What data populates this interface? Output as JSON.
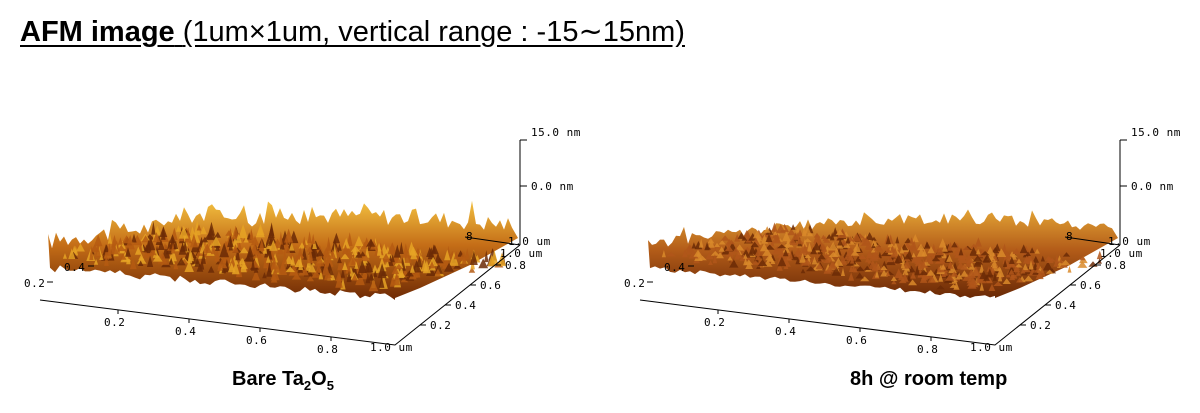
{
  "title": {
    "bold": "AFM image",
    "rest": "(1um×1um, vertical range : -15∼15nm)"
  },
  "panels": [
    {
      "caption_main": "Bare Ta",
      "caption_sub1": "2",
      "caption_mid": "O",
      "caption_sub2": "5",
      "z_top": "15.0 nm",
      "z_mid": "0.0 nm",
      "x_ticks": [
        "0.2",
        "0.4",
        "0.6",
        "0.8",
        "1.0 um"
      ],
      "y_ticks": [
        "0.2",
        "0.4",
        "0.6",
        "0.8",
        "1.0 um"
      ],
      "y_left_ticks": [
        "0.2",
        "0.4"
      ],
      "corner_label": "1.0 um",
      "corner_tick": "8",
      "colors": {
        "dark": "#6b2a06",
        "mid": "#b55a12",
        "light": "#e6a324"
      }
    },
    {
      "caption_main": "8h @ room temp",
      "z_top": "15.0 nm",
      "z_mid": "0.0 nm",
      "x_ticks": [
        "0.2",
        "0.4",
        "0.6",
        "0.8",
        "1.0 um"
      ],
      "y_ticks": [
        "0.2",
        "0.4",
        "0.6",
        "0.8",
        "1.0 um"
      ],
      "y_left_ticks": [
        "0.2",
        "0.4"
      ],
      "corner_label": "1.0 um",
      "corner_tick": "8",
      "colors": {
        "dark": "#6b2a06",
        "mid": "#b0561a",
        "light": "#d98a2a"
      }
    }
  ]
}
